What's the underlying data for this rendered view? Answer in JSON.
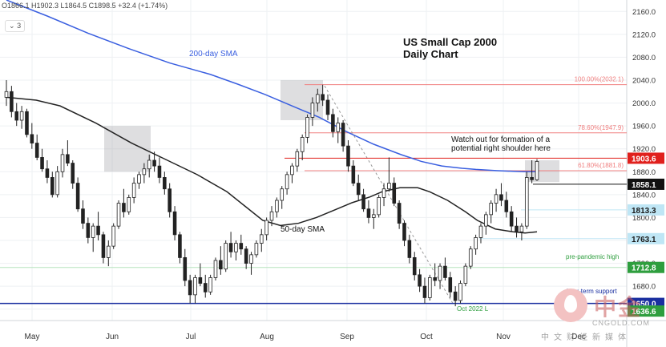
{
  "ohlc_text": "O1866.1 H1902.3 L1864.5 C1898.5 +32.4 (+1.74%)",
  "collapse_label": "3",
  "watermark": {
    "brand": "中金",
    "sub": "CNGOLD.COM",
    "tagline": "中文财经新媒体"
  },
  "chart_data": {
    "type": "candlestick",
    "title": "US Small Cap 2000",
    "subtitle": "Daily Chart",
    "ylim": [
      1620,
      2180
    ],
    "y_ticks": [
      1640,
      1680,
      1720,
      1760,
      1800,
      1840,
      1880,
      1920,
      1960,
      2000,
      2040,
      2080,
      2120,
      2160
    ],
    "x_ticks": [
      "May",
      "Jun",
      "Jul",
      "Aug",
      "Sep",
      "Oct",
      "Nov",
      "Dec"
    ],
    "colors": {
      "up": "#222222",
      "down": "#222222",
      "sma200": "#3a5fe0",
      "sma50": "#222222",
      "fib": "#f08080",
      "resistance": "#e0201c",
      "support": "#29a3d6",
      "ltsupport": "#1a2fa0",
      "green": "#2e9e3e"
    },
    "sma200": {
      "label": "200-day SMA",
      "points": [
        [
          0,
          2180
        ],
        [
          30,
          2152
        ],
        [
          60,
          2122
        ],
        [
          90,
          2095
        ],
        [
          120,
          2070
        ],
        [
          150,
          2050
        ],
        [
          170,
          2033
        ],
        [
          190,
          2015
        ],
        [
          210,
          1995
        ],
        [
          230,
          1975
        ],
        [
          250,
          1950
        ],
        [
          270,
          1928
        ],
        [
          290,
          1910
        ],
        [
          305,
          1898
        ],
        [
          320,
          1890
        ],
        [
          335,
          1886
        ],
        [
          345,
          1884
        ],
        [
          360,
          1882
        ],
        [
          380,
          1880
        ],
        [
          390,
          1880
        ]
      ]
    },
    "sma50": {
      "label": "50-day SMA",
      "points": [
        [
          0,
          2010
        ],
        [
          25,
          2005
        ],
        [
          45,
          1995
        ],
        [
          75,
          1965
        ],
        [
          105,
          1930
        ],
        [
          135,
          1900
        ],
        [
          160,
          1875
        ],
        [
          185,
          1845
        ],
        [
          200,
          1820
        ],
        [
          215,
          1795
        ],
        [
          230,
          1786
        ],
        [
          245,
          1790
        ],
        [
          260,
          1800
        ],
        [
          275,
          1813
        ],
        [
          290,
          1826
        ],
        [
          305,
          1836
        ],
        [
          315,
          1845
        ],
        [
          330,
          1852
        ],
        [
          345,
          1852
        ],
        [
          355,
          1845
        ],
        [
          370,
          1830
        ],
        [
          385,
          1810
        ],
        [
          395,
          1795
        ],
        [
          410,
          1780
        ],
        [
          425,
          1775
        ],
        [
          435,
          1773
        ],
        [
          445,
          1775
        ]
      ]
    },
    "candles": [
      [
        2010,
        2040,
        1995,
        2020
      ],
      [
        2020,
        2030,
        1975,
        1985
      ],
      [
        1985,
        2000,
        1960,
        1970
      ],
      [
        1970,
        1995,
        1955,
        1985
      ],
      [
        1985,
        1990,
        1940,
        1945
      ],
      [
        1945,
        1965,
        1920,
        1930
      ],
      [
        1930,
        1945,
        1900,
        1905
      ],
      [
        1905,
        1920,
        1880,
        1885
      ],
      [
        1885,
        1900,
        1860,
        1870
      ],
      [
        1870,
        1880,
        1835,
        1840
      ],
      [
        1840,
        1890,
        1835,
        1880
      ],
      [
        1880,
        1920,
        1870,
        1910
      ],
      [
        1910,
        1935,
        1890,
        1895
      ],
      [
        1895,
        1900,
        1850,
        1860
      ],
      [
        1860,
        1870,
        1810,
        1815
      ],
      [
        1815,
        1830,
        1780,
        1790
      ],
      [
        1790,
        1800,
        1755,
        1765
      ],
      [
        1765,
        1790,
        1740,
        1785
      ],
      [
        1785,
        1810,
        1760,
        1770
      ],
      [
        1770,
        1775,
        1720,
        1730
      ],
      [
        1730,
        1760,
        1715,
        1750
      ],
      [
        1750,
        1790,
        1745,
        1785
      ],
      [
        1785,
        1830,
        1780,
        1825
      ],
      [
        1825,
        1850,
        1800,
        1810
      ],
      [
        1810,
        1840,
        1805,
        1835
      ],
      [
        1835,
        1870,
        1825,
        1860
      ],
      [
        1860,
        1880,
        1850,
        1875
      ],
      [
        1875,
        1895,
        1860,
        1885
      ],
      [
        1885,
        1910,
        1870,
        1900
      ],
      [
        1900,
        1915,
        1880,
        1890
      ],
      [
        1890,
        1905,
        1860,
        1870
      ],
      [
        1870,
        1880,
        1840,
        1850
      ],
      [
        1850,
        1860,
        1800,
        1810
      ],
      [
        1810,
        1820,
        1760,
        1770
      ],
      [
        1770,
        1775,
        1720,
        1730
      ],
      [
        1730,
        1745,
        1680,
        1690
      ],
      [
        1690,
        1700,
        1650,
        1665
      ],
      [
        1665,
        1700,
        1650,
        1695
      ],
      [
        1695,
        1720,
        1680,
        1685
      ],
      [
        1685,
        1700,
        1660,
        1670
      ],
      [
        1670,
        1700,
        1665,
        1695
      ],
      [
        1695,
        1730,
        1690,
        1725
      ],
      [
        1725,
        1750,
        1700,
        1710
      ],
      [
        1710,
        1760,
        1705,
        1755
      ],
      [
        1755,
        1775,
        1730,
        1740
      ],
      [
        1740,
        1760,
        1725,
        1755
      ],
      [
        1755,
        1770,
        1735,
        1745
      ],
      [
        1745,
        1750,
        1710,
        1720
      ],
      [
        1720,
        1740,
        1700,
        1735
      ],
      [
        1735,
        1760,
        1730,
        1755
      ],
      [
        1755,
        1780,
        1740,
        1770
      ],
      [
        1770,
        1800,
        1760,
        1795
      ],
      [
        1795,
        1820,
        1785,
        1810
      ],
      [
        1810,
        1835,
        1800,
        1830
      ],
      [
        1830,
        1855,
        1815,
        1850
      ],
      [
        1850,
        1880,
        1840,
        1875
      ],
      [
        1875,
        1895,
        1860,
        1890
      ],
      [
        1890,
        1920,
        1880,
        1915
      ],
      [
        1915,
        1945,
        1900,
        1940
      ],
      [
        1940,
        1980,
        1930,
        1975
      ],
      [
        1975,
        2010,
        1960,
        2000
      ],
      [
        2000,
        2025,
        1985,
        2015
      ],
      [
        2015,
        2032,
        1995,
        2005
      ],
      [
        2005,
        2015,
        1970,
        1980
      ],
      [
        1980,
        1990,
        1940,
        1950
      ],
      [
        1950,
        1975,
        1930,
        1965
      ],
      [
        1965,
        1970,
        1915,
        1925
      ],
      [
        1925,
        1935,
        1880,
        1890
      ],
      [
        1890,
        1900,
        1855,
        1860
      ],
      [
        1860,
        1875,
        1830,
        1840
      ],
      [
        1840,
        1850,
        1810,
        1815
      ],
      [
        1815,
        1830,
        1790,
        1800
      ],
      [
        1800,
        1815,
        1780,
        1805
      ],
      [
        1805,
        1840,
        1800,
        1835
      ],
      [
        1835,
        1860,
        1820,
        1850
      ],
      [
        1850,
        1905,
        1845,
        1860
      ],
      [
        1860,
        1870,
        1820,
        1825
      ],
      [
        1825,
        1830,
        1780,
        1790
      ],
      [
        1790,
        1795,
        1750,
        1760
      ],
      [
        1760,
        1770,
        1720,
        1730
      ],
      [
        1730,
        1740,
        1690,
        1700
      ],
      [
        1700,
        1710,
        1670,
        1680
      ],
      [
        1680,
        1695,
        1650,
        1660
      ],
      [
        1660,
        1700,
        1655,
        1695
      ],
      [
        1695,
        1720,
        1680,
        1690
      ],
      [
        1690,
        1720,
        1675,
        1715
      ],
      [
        1715,
        1730,
        1690,
        1695
      ],
      [
        1695,
        1705,
        1660,
        1670
      ],
      [
        1670,
        1680,
        1645,
        1655
      ],
      [
        1655,
        1690,
        1650,
        1685
      ],
      [
        1685,
        1720,
        1680,
        1715
      ],
      [
        1715,
        1750,
        1710,
        1745
      ],
      [
        1745,
        1770,
        1735,
        1765
      ],
      [
        1765,
        1790,
        1755,
        1785
      ],
      [
        1785,
        1810,
        1770,
        1805
      ],
      [
        1805,
        1830,
        1790,
        1825
      ],
      [
        1825,
        1850,
        1810,
        1840
      ],
      [
        1840,
        1860,
        1820,
        1830
      ],
      [
        1830,
        1845,
        1800,
        1810
      ],
      [
        1810,
        1820,
        1775,
        1785
      ],
      [
        1785,
        1800,
        1765,
        1775
      ],
      [
        1775,
        1790,
        1760,
        1785
      ],
      [
        1785,
        1880,
        1780,
        1870
      ],
      [
        1870,
        1900,
        1860,
        1866
      ],
      [
        1866,
        1902,
        1864,
        1898
      ]
    ],
    "fib_levels": [
      {
        "label": "100.00%(2032.1)",
        "value": 2032.1
      },
      {
        "label": "78.60%(1947.9)",
        "value": 1947.9
      },
      {
        "label": "61.80%(1881.8)",
        "value": 1881.8
      }
    ],
    "levels": [
      {
        "value": 1903.6,
        "label": "1903.6",
        "color": "#e0201c",
        "text_color": "#ffffff",
        "line": "solid"
      },
      {
        "value": 1858.1,
        "label": "1858.1",
        "color": "#111111",
        "text_color": "#ffffff",
        "line": "solid"
      },
      {
        "value": 1813.3,
        "label": "1813.3",
        "color": "#bfe6f5",
        "text_color": "#1a1a1a",
        "line": "solid"
      },
      {
        "value": 1763.1,
        "label": "1763.1",
        "color": "#bfe6f5",
        "text_color": "#1a1a1a",
        "line": "solid"
      },
      {
        "value": 1712.8,
        "label": "1712.8",
        "color": "#2e9e3e",
        "text_color": "#ffffff",
        "line": "none"
      },
      {
        "value": 1650.0,
        "label": "1650.0",
        "color": "#1a2fa0",
        "text_color": "#ffffff",
        "line": "solid"
      },
      {
        "value": 1636.6,
        "label": "1636.6",
        "color": "#2e9e3e",
        "text_color": "#ffffff",
        "line": "none"
      }
    ],
    "annotations": {
      "sma200_label": "200-day SMA",
      "sma50_label": "50-day SMA",
      "watch_note_1": "Watch out for formation of a",
      "watch_note_2": "potential right shoulder here",
      "pre_pandemic": "pre-pandemic high",
      "long_term_support": "long-term support",
      "oct_low": "Oct 2022 L"
    }
  }
}
